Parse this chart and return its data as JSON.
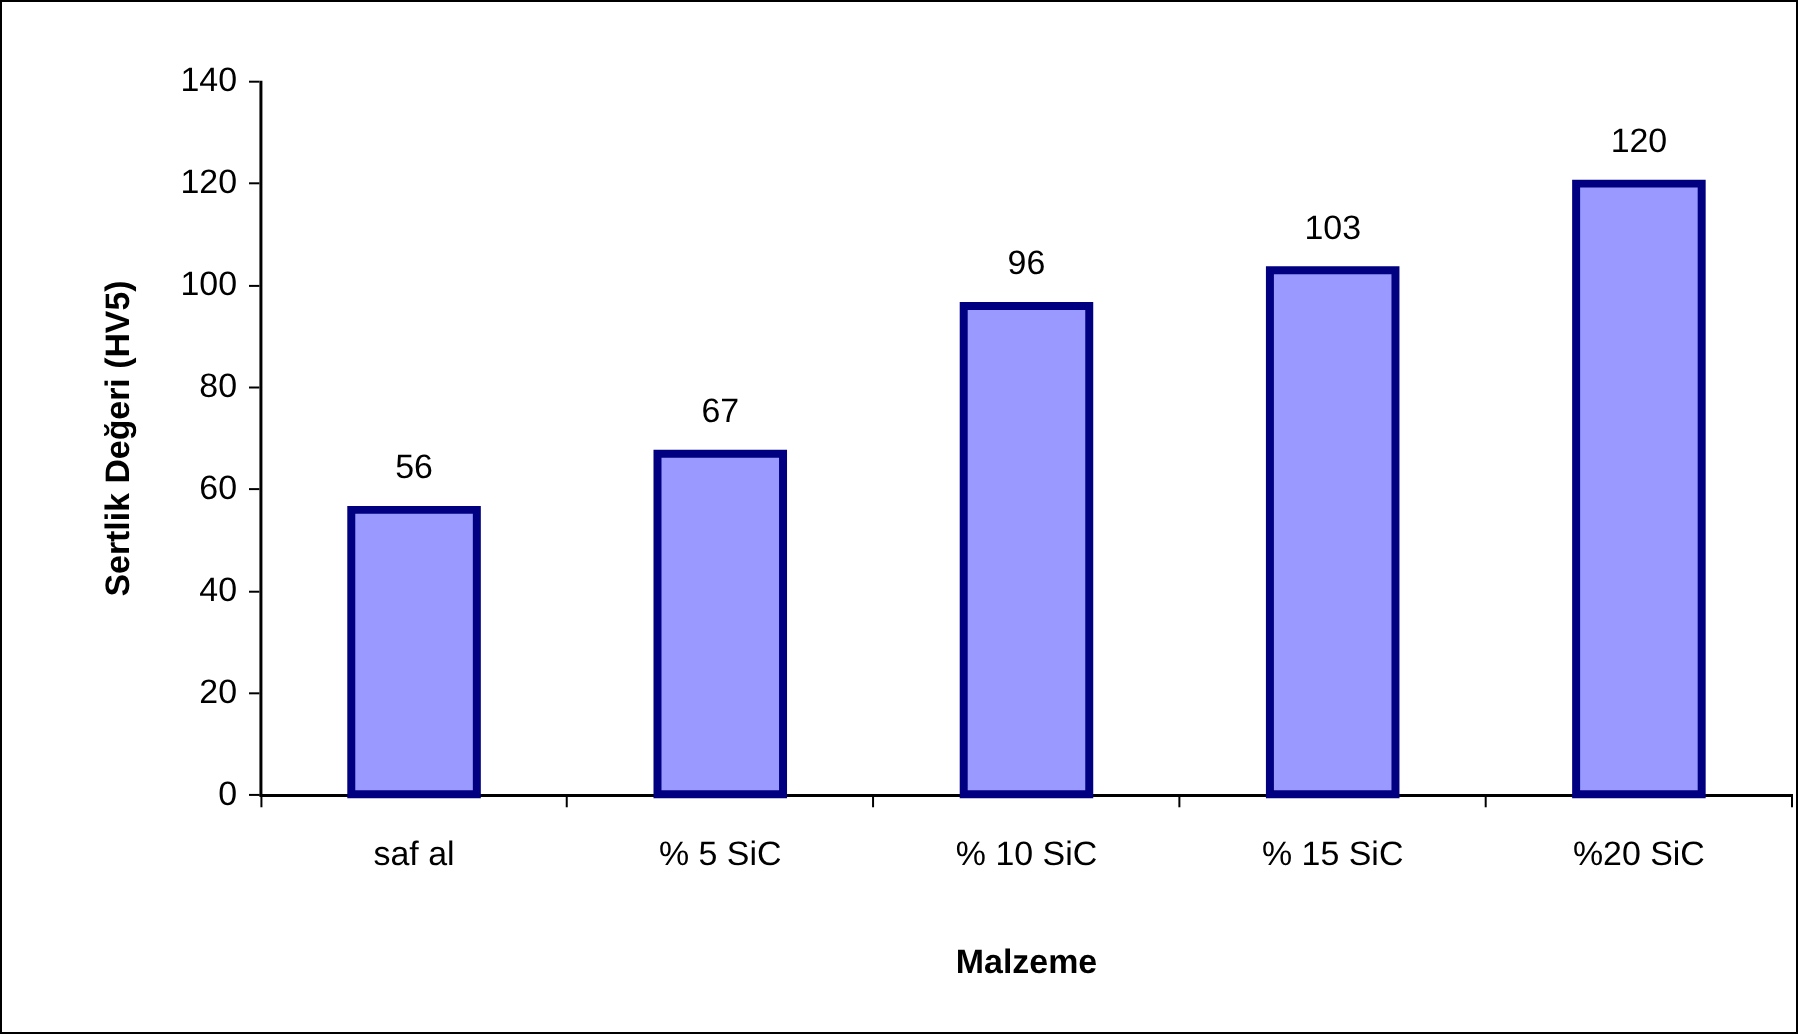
{
  "chart_data": {
    "type": "bar",
    "xlabel": "Malzeme",
    "ylabel": "Sertlik Değeri (HV5)",
    "categories": [
      "saf al",
      "% 5 SiC",
      "% 10 SiC",
      "% 15 SiC",
      "%20 SiC"
    ],
    "values": [
      56,
      67,
      96,
      103,
      120
    ],
    "color": "#9999ff",
    "ylim": [
      0,
      140
    ],
    "yticks": [
      0,
      20,
      40,
      60,
      80,
      100,
      120,
      140
    ],
    "grid": false,
    "legend": false,
    "data_labels": true
  }
}
